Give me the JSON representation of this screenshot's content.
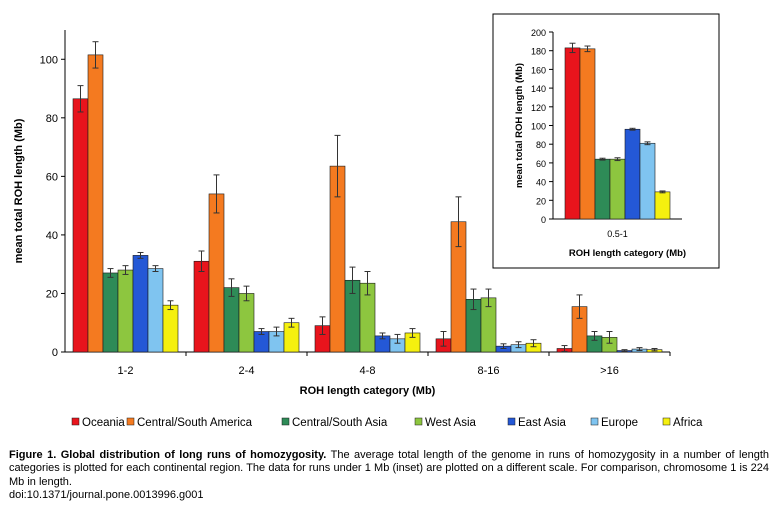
{
  "chart_data": [
    {
      "type": "bar",
      "ylabel": "mean total ROH length (Mb)",
      "xlabel": "ROH length category (Mb)",
      "ylim": [
        0,
        110
      ],
      "yticks": [
        0,
        20,
        40,
        60,
        80,
        100
      ],
      "categories": [
        "1-2",
        "2-4",
        "4-8",
        "8-16",
        ">16"
      ],
      "series": [
        {
          "name": "Oceania",
          "color": "#e8141c",
          "values": [
            86.5,
            31,
            9,
            4.5,
            1.2
          ],
          "errors": [
            4.5,
            3.5,
            3,
            2.5,
            1
          ]
        },
        {
          "name": "Central/South America",
          "color": "#f47a20",
          "values": [
            101.5,
            54,
            63.5,
            44.5,
            15.5
          ],
          "errors": [
            4.5,
            6.5,
            10.5,
            8.5,
            4
          ]
        },
        {
          "name": "Central/South Asia",
          "color": "#2e8b57",
          "values": [
            27,
            22,
            24.5,
            18,
            5.5
          ],
          "errors": [
            1.5,
            3,
            4.5,
            3.5,
            1.5
          ]
        },
        {
          "name": "West Asia",
          "color": "#8dc63f",
          "values": [
            28,
            20,
            23.5,
            18.5,
            5
          ],
          "errors": [
            1.5,
            2.5,
            4,
            3,
            2
          ]
        },
        {
          "name": "East Asia",
          "color": "#2458d6",
          "values": [
            33,
            7,
            5.5,
            2,
            0.5
          ],
          "errors": [
            1,
            1,
            1,
            0.8,
            0.3
          ]
        },
        {
          "name": "Europe",
          "color": "#7fc4f0",
          "values": [
            28.5,
            7,
            4.5,
            2.5,
            1
          ],
          "errors": [
            1,
            1.5,
            1.5,
            1,
            0.5
          ]
        },
        {
          "name": "Africa",
          "color": "#f5f00f",
          "values": [
            16,
            10,
            6.5,
            3,
            0.8
          ],
          "errors": [
            1.5,
            1.5,
            1.5,
            1.2,
            0.4
          ]
        }
      ]
    },
    {
      "type": "bar",
      "inset": true,
      "ylabel": "mean total ROH length (Mb)",
      "xlabel": "ROH length category (Mb)",
      "ylim": [
        0,
        200
      ],
      "yticks": [
        0,
        20,
        40,
        60,
        80,
        100,
        120,
        140,
        160,
        180,
        200
      ],
      "categories": [
        "0.5-1"
      ],
      "series": [
        {
          "name": "Oceania",
          "color": "#e8141c",
          "values": [
            183
          ],
          "errors": [
            5
          ]
        },
        {
          "name": "Central/South America",
          "color": "#f47a20",
          "values": [
            182
          ],
          "errors": [
            3
          ]
        },
        {
          "name": "Central/South Asia",
          "color": "#2e8b57",
          "values": [
            64
          ],
          "errors": [
            1
          ]
        },
        {
          "name": "West Asia",
          "color": "#8dc63f",
          "values": [
            64
          ],
          "errors": [
            1.5
          ]
        },
        {
          "name": "East Asia",
          "color": "#2458d6",
          "values": [
            96
          ],
          "errors": [
            1
          ]
        },
        {
          "name": "Europe",
          "color": "#7fc4f0",
          "values": [
            81
          ],
          "errors": [
            1.5
          ]
        },
        {
          "name": "Africa",
          "color": "#f5f00f",
          "values": [
            29
          ],
          "errors": [
            1
          ]
        }
      ]
    }
  ],
  "legend": [
    "Oceania",
    "Central/South America",
    "Central/South Asia",
    "West Asia",
    "East Asia",
    "Europe",
    "Africa"
  ],
  "caption": {
    "title": "Figure 1. Global distribution of long runs of homozygosity.",
    "text": "The average total length of the genome in runs of homozygosity in a number of length categories is plotted for each continental region. The data for runs under 1 Mb (inset) are plotted on a different scale. For comparison, chromosome 1 is 224 Mb in length.",
    "doi": "doi:10.1371/journal.pone.0013996.g001"
  }
}
